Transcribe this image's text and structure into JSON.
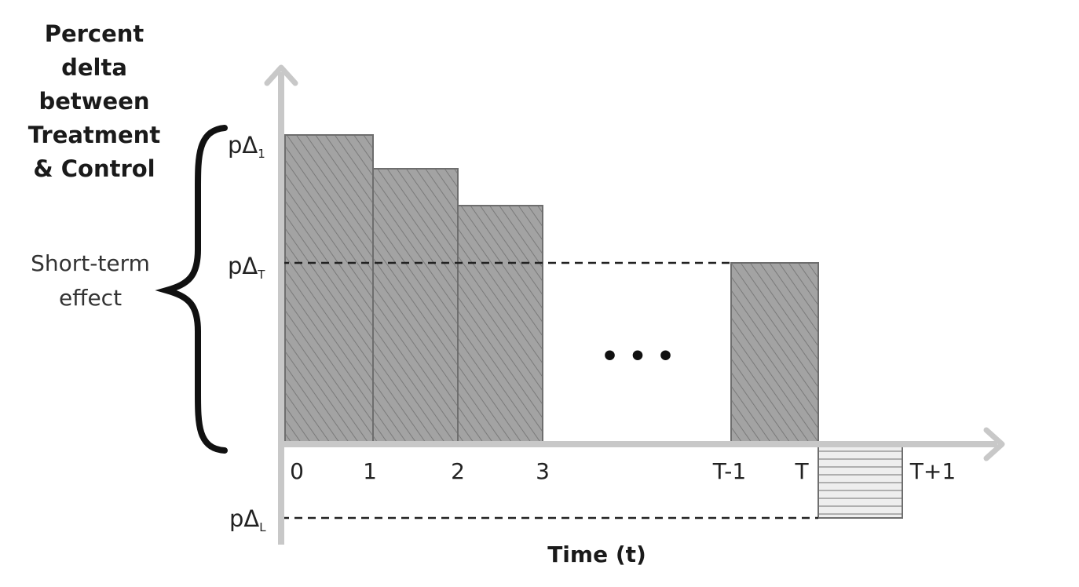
{
  "diagram": {
    "y_axis_label_lines": [
      "Percent",
      "delta",
      "between",
      "Treatment",
      "& Control"
    ],
    "x_axis_label": "Time (t)",
    "brace_label_lines": [
      "Short-term",
      "effect"
    ],
    "ellipsis": "• • •",
    "levels": [
      {
        "id": "p1",
        "base": "pΔ",
        "sub": "1"
      },
      {
        "id": "pT",
        "base": "pΔ",
        "sub": "T"
      },
      {
        "id": "pL",
        "base": "pΔ",
        "sub": "L"
      }
    ],
    "ticks": [
      "0",
      "1",
      "2",
      "3",
      "T-1",
      "T",
      "T+1"
    ],
    "colors": {
      "axis": "#c8c8c8",
      "bar_fill": "#9a9a9a",
      "bar_stroke": "#6e6e6e",
      "negative_fill": "#e6e6e6",
      "brace": "#111111",
      "dashed": "#222222"
    }
  }
}
